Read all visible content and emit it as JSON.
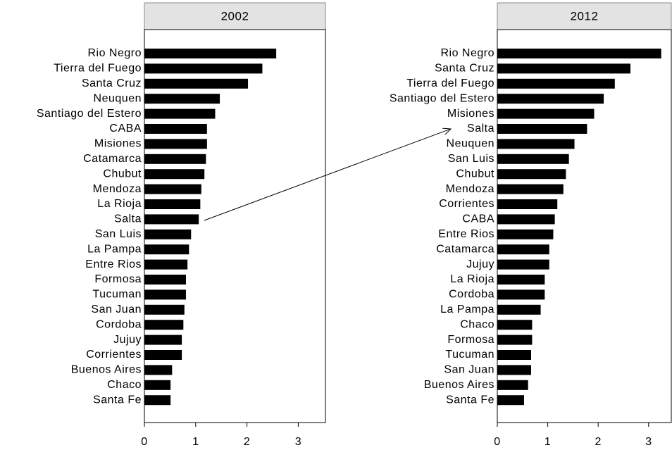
{
  "chart_data": [
    {
      "type": "bar",
      "orientation": "horizontal",
      "title": "2002",
      "color": "#000000",
      "categories": [
        "Rio Negro",
        "Tierra del Fuego",
        "Santa Cruz",
        "Neuquen",
        "Santiago del Estero",
        "CABA",
        "Misiones",
        "Catamarca",
        "Chubut",
        "Mendoza",
        "La Rioja",
        "Salta",
        "San Luis",
        "La Pampa",
        "Entre Rios",
        "Formosa",
        "Tucuman",
        "San Juan",
        "Cordoba",
        "Jujuy",
        "Corrientes",
        "Buenos Aires",
        "Chaco",
        "Santa Fe"
      ],
      "values": [
        2.57,
        2.3,
        2.02,
        1.47,
        1.38,
        1.22,
        1.22,
        1.2,
        1.17,
        1.11,
        1.09,
        1.06,
        0.91,
        0.87,
        0.84,
        0.81,
        0.81,
        0.78,
        0.76,
        0.73,
        0.73,
        0.54,
        0.51,
        0.51
      ],
      "xlim": [
        0,
        3.53
      ],
      "xticks": [
        0,
        1,
        2,
        3
      ]
    },
    {
      "type": "bar",
      "orientation": "horizontal",
      "title": "2012",
      "color": "#000000",
      "categories": [
        "Rio Negro",
        "Santa Cruz",
        "Tierra del Fuego",
        "Santiago del Estero",
        "Misiones",
        "Salta",
        "Neuquen",
        "San Luis",
        "Chubut",
        "Mendoza",
        "Corrientes",
        "CABA",
        "Entre Rios",
        "Catamarca",
        "Jujuy",
        "La Rioja",
        "Cordoba",
        "La Pampa",
        "Chaco",
        "Formosa",
        "Tucuman",
        "San Juan",
        "Buenos Aires",
        "Santa Fe"
      ],
      "values": [
        3.25,
        2.64,
        2.33,
        2.11,
        1.92,
        1.78,
        1.53,
        1.42,
        1.36,
        1.31,
        1.19,
        1.14,
        1.11,
        1.03,
        1.03,
        0.94,
        0.94,
        0.86,
        0.69,
        0.69,
        0.67,
        0.67,
        0.61,
        0.53
      ],
      "xlim": [
        0,
        3.45
      ],
      "xticks": [
        0,
        1,
        2,
        3
      ]
    }
  ]
}
